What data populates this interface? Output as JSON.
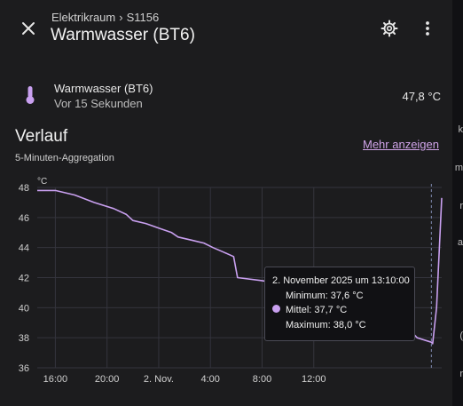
{
  "header": {
    "breadcrumb_area": "Elektrikraum",
    "breadcrumb_separator": "›",
    "breadcrumb_device": "S1156",
    "title": "Warmwasser (BT6)"
  },
  "entity": {
    "name": "Warmwasser (BT6)",
    "last_changed": "Vor 15 Sekunden",
    "value": "47,8 °C"
  },
  "history": {
    "title": "Verlauf",
    "more_link": "Mehr anzeigen",
    "aggregation": "5-Minuten-Aggregation"
  },
  "edge": {
    "text": [
      "k",
      "m",
      "r",
      "a",
      "(",
      "r"
    ]
  },
  "colors": {
    "accent": "#cfa3e8",
    "line": "#c9a0f0",
    "background": "#1c1c1e"
  },
  "chart_data": {
    "type": "line",
    "unit": "°C",
    "y_ticks": [
      "48",
      "46",
      "44",
      "42",
      "40",
      "38",
      "36"
    ],
    "x_ticks": [
      "16:00",
      "20:00",
      "2. Nov.",
      "4:00",
      "8:00",
      "12:00"
    ],
    "ylim": [
      36,
      48
    ],
    "x_range_hours": [
      -17.4,
      13.9
    ],
    "grid": true,
    "series": [
      {
        "points": [
          [
            -17.4,
            47.8
          ],
          [
            -16.0,
            47.8
          ],
          [
            -14.5,
            47.5
          ],
          [
            -13.0,
            47.0
          ],
          [
            -11.5,
            46.6
          ],
          [
            -10.5,
            46.2
          ],
          [
            -10.0,
            45.8
          ],
          [
            -9.0,
            45.6
          ],
          [
            -8.0,
            45.3
          ],
          [
            -7.0,
            45.0
          ],
          [
            -6.5,
            44.7
          ],
          [
            -5.5,
            44.5
          ],
          [
            -4.5,
            44.3
          ],
          [
            -3.8,
            44.0
          ],
          [
            -3.0,
            43.7
          ],
          [
            -2.2,
            43.4
          ],
          [
            -1.9,
            42.0
          ],
          [
            0.0,
            41.8
          ],
          [
            2.0,
            41.5
          ],
          [
            4.0,
            41.2
          ],
          [
            6.0,
            40.9
          ],
          [
            8.0,
            40.5
          ],
          [
            10.0,
            39.8
          ],
          [
            12.0,
            38.0
          ],
          [
            13.1,
            37.7
          ],
          [
            13.2,
            37.6
          ],
          [
            13.5,
            40.0
          ],
          [
            13.9,
            47.3
          ]
        ]
      }
    ],
    "cursor_x": 13.1,
    "tooltip": {
      "title": "2. November 2025 um 13:10:00",
      "minimum": "Minimum: 37,6 °C",
      "mean": "Mittel: 37,7 °C",
      "maximum": "Maximum: 38,0 °C"
    }
  }
}
